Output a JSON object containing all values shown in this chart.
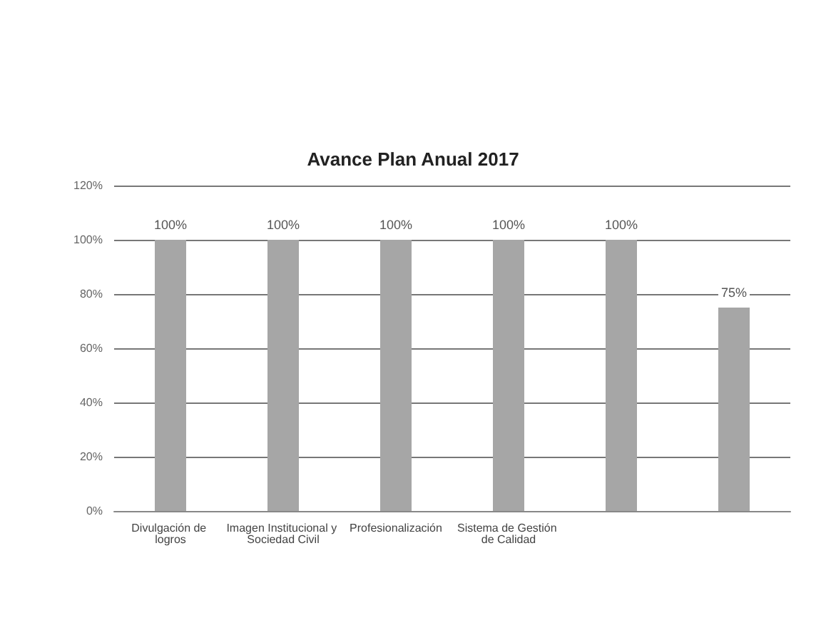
{
  "chart_data": {
    "type": "bar",
    "title": "Avance Plan Anual 2017",
    "categories": [
      "Divulgación de logros",
      "Imagen Institucional y Sociedad Civil",
      "Profesionalización",
      "Sistema de Gestión de Calidad",
      null,
      null
    ],
    "values": [
      100,
      100,
      100,
      100,
      100,
      75
    ],
    "color": "#a6a6a6",
    "value_labels": [
      "100%",
      "100%",
      "100%",
      "100%",
      "100%",
      "75%"
    ],
    "ylim": [
      0,
      120
    ],
    "yticks": [
      {
        "value": 0,
        "label": "0%"
      },
      {
        "value": 20,
        "label": "20%"
      },
      {
        "value": 40,
        "label": "40%"
      },
      {
        "value": 60,
        "label": "60%"
      },
      {
        "value": 80,
        "label": "80%"
      },
      {
        "value": 100,
        "label": "100%"
      },
      {
        "value": 120,
        "label": "120%"
      }
    ],
    "grid": "y"
  }
}
